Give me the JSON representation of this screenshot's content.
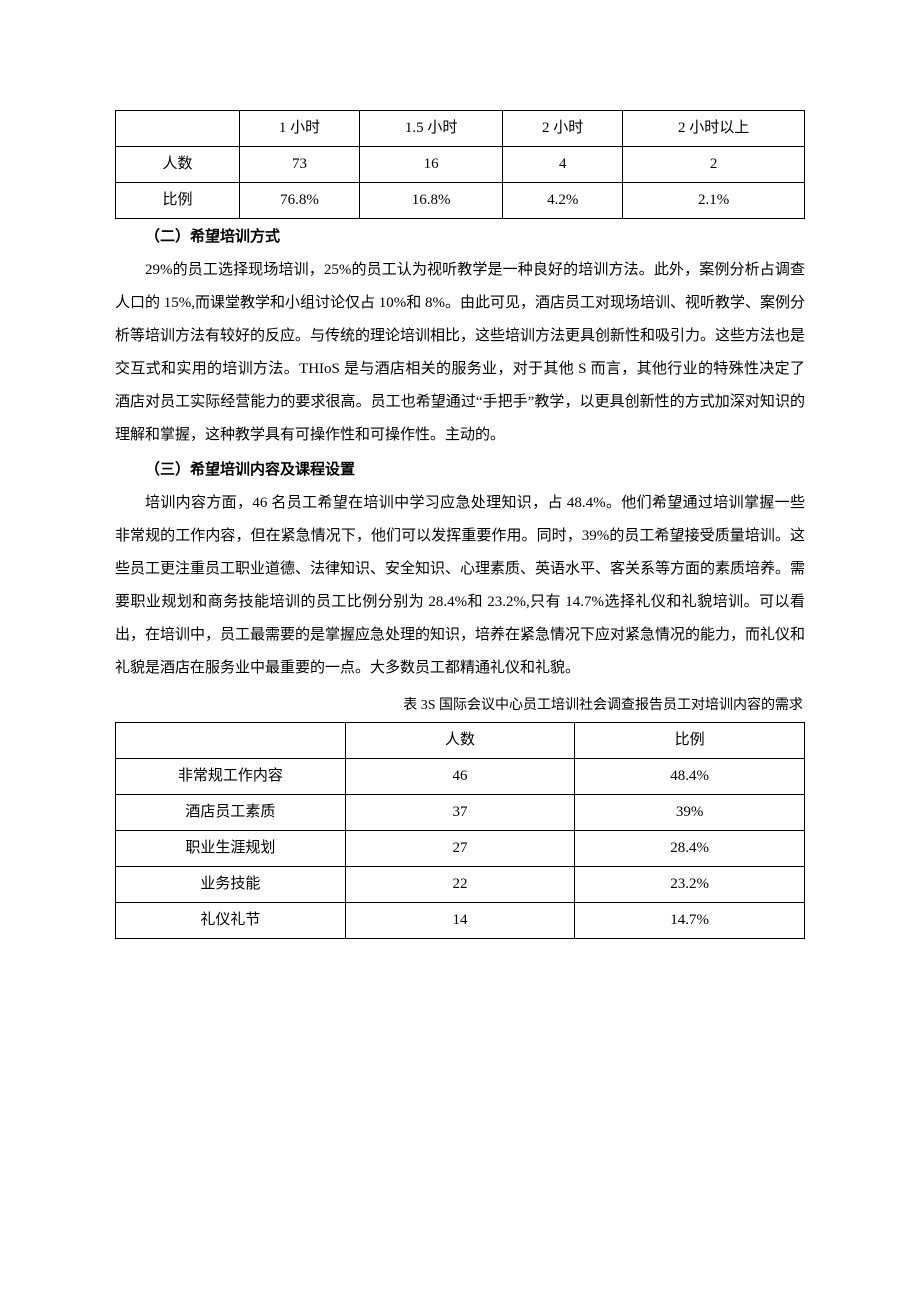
{
  "table1": {
    "headers": [
      "",
      "1 小时",
      "1.5 小时",
      "2 小时",
      "2 小时以上"
    ],
    "rows": [
      [
        "人数",
        "73",
        "16",
        "4",
        "2"
      ],
      [
        "比例",
        "76.8%",
        "16.8%",
        "4.2%",
        "2.1%"
      ]
    ]
  },
  "section2": {
    "heading": "（二）希望培训方式",
    "para": "29%的员工选择现场培训，25%的员工认为视听教学是一种良好的培训方法。此外，案例分析占调查人口的 15%,而课堂教学和小组讨论仅占 10%和 8%。由此可见，酒店员工对现场培训、视听教学、案例分析等培训方法有较好的反应。与传统的理论培训相比，这些培训方法更具创新性和吸引力。这些方法也是交互式和实用的培训方法。THIoS 是与酒店相关的服务业，对于其他 S 而言，其他行业的特殊性决定了酒店对员工实际经营能力的要求很高。员工也希望通过“手把手”教学，以更具创新性的方式加深对知识的理解和掌握，这种教学具有可操作性和可操作性。主动的。"
  },
  "section3": {
    "heading": "（三）希望培训内容及课程设置",
    "para": "培训内容方面，46 名员工希望在培训中学习应急处理知识，占 48.4%。他们希望通过培训掌握一些非常规的工作内容，但在紧急情况下，他们可以发挥重要作用。同时，39%的员工希望接受质量培训。这些员工更注重员工职业道德、法律知识、安全知识、心理素质、英语水平、客关系等方面的素质培养。需要职业规划和商务技能培训的员工比例分别为 28.4%和 23.2%,只有 14.7%选择礼仪和礼貌培训。可以看出，在培训中，员工最需要的是掌握应急处理的知识，培养在紧急情况下应对紧急情况的能力，而礼仪和礼貌是酒店在服务业中最重要的一点。大多数员工都精通礼仪和礼貌。"
  },
  "table2": {
    "caption": "表 3S 国际会议中心员工培训社会调查报告员工对培训内容的需求",
    "headers": [
      "",
      "人数",
      "比例"
    ],
    "rows": [
      [
        "非常规工作内容",
        "46",
        "48.4%"
      ],
      [
        "酒店员工素质",
        "37",
        "39%"
      ],
      [
        "职业生涯规划",
        "27",
        "28.4%"
      ],
      [
        "业务技能",
        "22",
        "23.2%"
      ],
      [
        "礼仪礼节",
        "14",
        "14.7%"
      ]
    ]
  }
}
